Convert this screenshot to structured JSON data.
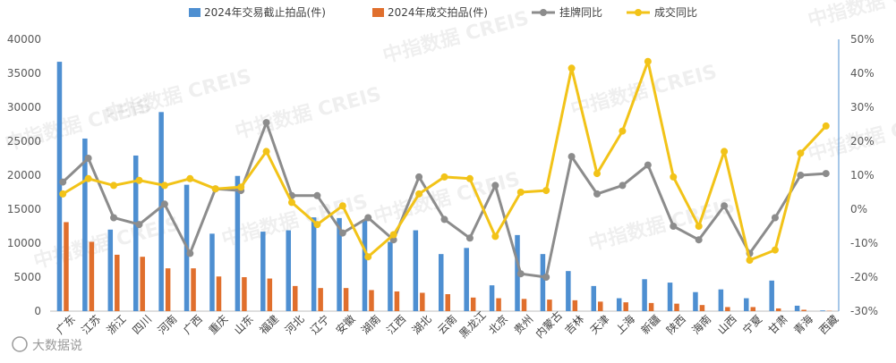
{
  "chart_data": {
    "type": "bar",
    "categories": [
      "广东",
      "江苏",
      "浙江",
      "四川",
      "河南",
      "广西",
      "重庆",
      "山东",
      "福建",
      "河北",
      "辽宁",
      "安徽",
      "湖南",
      "江西",
      "湖北",
      "云南",
      "黑龙江",
      "北京",
      "贵州",
      "内蒙古",
      "吉林",
      "天津",
      "上海",
      "新疆",
      "陕西",
      "海南",
      "山西",
      "宁夏",
      "甘肃",
      "青海",
      "西藏"
    ],
    "series": [
      {
        "name": "2024年交易截止拍品(件)",
        "type": "bar",
        "axis": "left",
        "color": "#4e8fd1",
        "values": [
          36700,
          25400,
          12000,
          22900,
          29300,
          18600,
          11400,
          19900,
          11700,
          11900,
          13800,
          13700,
          13400,
          10200,
          11900,
          8400,
          9300,
          3800,
          11200,
          8400,
          5900,
          3700,
          1900,
          4700,
          4200,
          2800,
          3200,
          1900,
          4500,
          800,
          100
        ]
      },
      {
        "name": "2024年成交拍品(件)",
        "type": "bar",
        "axis": "left",
        "color": "#e06f2d",
        "values": [
          13100,
          10200,
          8300,
          8000,
          6300,
          6300,
          5100,
          5000,
          4800,
          3700,
          3400,
          3400,
          3100,
          2900,
          2700,
          2500,
          2000,
          1900,
          1800,
          1700,
          1600,
          1400,
          1300,
          1200,
          1100,
          900,
          600,
          600,
          400,
          200,
          50
        ]
      },
      {
        "name": "挂牌同比",
        "type": "line",
        "axis": "right",
        "color": "#8c8c8c",
        "values": [
          8,
          15,
          -2.5,
          -4.5,
          1.5,
          -13,
          6,
          5.5,
          25.5,
          4,
          4,
          -7,
          -2.5,
          -9,
          9.5,
          -3,
          -8.5,
          7,
          -19,
          -20,
          15.5,
          4.5,
          7,
          13,
          -5,
          -9,
          1,
          -13,
          -2.5,
          10,
          10.5
        ]
      },
      {
        "name": "成交同比",
        "type": "line",
        "axis": "right",
        "color": "#f2c318",
        "values": [
          4.5,
          9,
          7,
          8.5,
          7,
          9,
          6,
          6.5,
          17,
          2,
          -4.5,
          1,
          -14,
          -7.5,
          4.5,
          9.5,
          9,
          -8,
          5,
          5.5,
          41.5,
          10.5,
          23,
          43.5,
          9.5,
          -5,
          17,
          -15,
          -12,
          16.5,
          24.5
        ]
      }
    ],
    "yAxisLeft": {
      "min": 0,
      "max": 40000,
      "ticks": [
        "0",
        "5000",
        "10000",
        "15000",
        "20000",
        "25000",
        "30000",
        "35000",
        "40000"
      ]
    },
    "yAxisRight": {
      "min": -30,
      "max": 50,
      "ticks": [
        "-30%",
        "-20%",
        "-10%",
        "0%",
        "10%",
        "20%",
        "30%",
        "40%",
        "50%"
      ]
    },
    "legend": "top-center"
  },
  "watermark": "中指数据 CREIS",
  "source": "大数据说"
}
